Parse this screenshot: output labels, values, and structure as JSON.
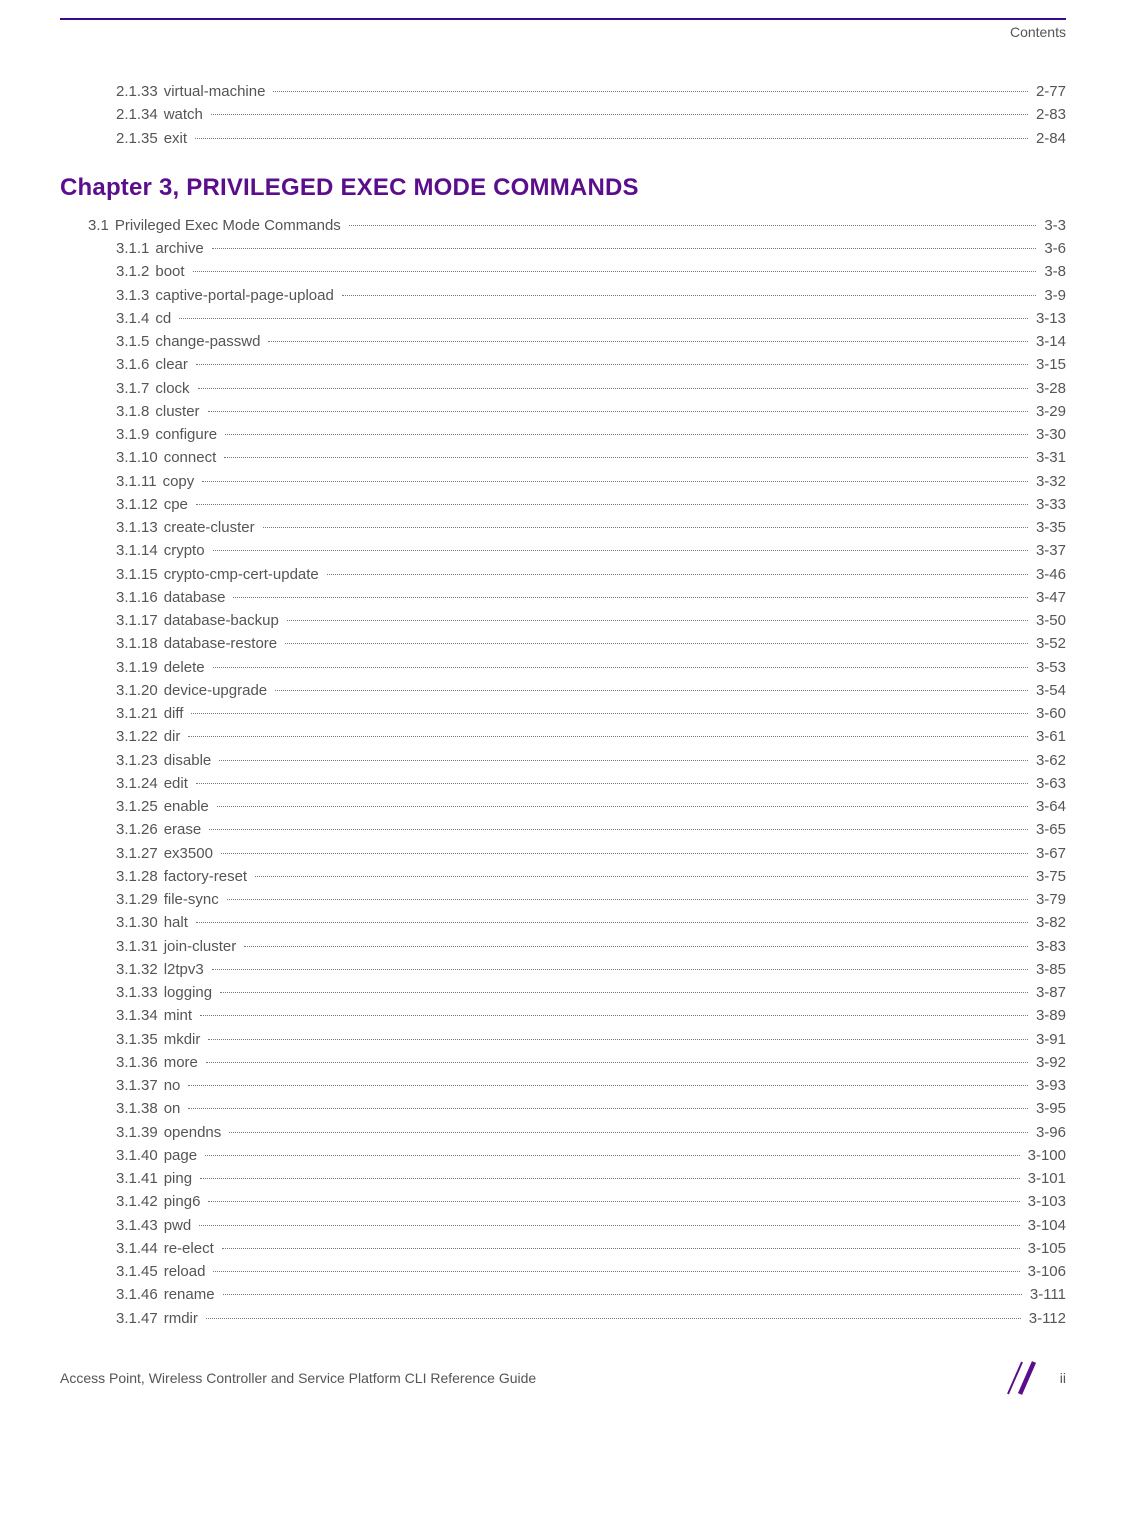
{
  "header": {
    "label": "Contents"
  },
  "colors": {
    "accent": "#5b0e8b",
    "rule": "#3a0a8a",
    "text": "#555555",
    "dots": "#777777",
    "slash": "#5b0e8b",
    "background": "#ffffff"
  },
  "typography": {
    "body_fontsize": 15,
    "chapter_fontsize": 24,
    "chapter_weight": 700
  },
  "pretoc": [
    {
      "num": "2.1.33",
      "title": "virtual-machine",
      "page": "2-77",
      "level": 2
    },
    {
      "num": "2.1.34",
      "title": "watch",
      "page": "2-83",
      "level": 2
    },
    {
      "num": "2.1.35",
      "title": "exit",
      "page": "2-84",
      "level": 2
    }
  ],
  "chapter": {
    "heading": "Chapter 3, PRIVILEGED EXEC MODE COMMANDS"
  },
  "toc": [
    {
      "num": "3.1",
      "title": "Privileged Exec Mode Commands",
      "page": "3-3",
      "level": 1
    },
    {
      "num": "3.1.1",
      "title": "archive",
      "page": "3-6",
      "level": 2
    },
    {
      "num": "3.1.2",
      "title": "boot",
      "page": "3-8",
      "level": 2
    },
    {
      "num": "3.1.3",
      "title": "captive-portal-page-upload",
      "page": "3-9",
      "level": 2
    },
    {
      "num": "3.1.4",
      "title": "cd",
      "page": "3-13",
      "level": 2
    },
    {
      "num": "3.1.5",
      "title": "change-passwd",
      "page": "3-14",
      "level": 2
    },
    {
      "num": "3.1.6",
      "title": "clear",
      "page": "3-15",
      "level": 2
    },
    {
      "num": "3.1.7",
      "title": "clock",
      "page": "3-28",
      "level": 2
    },
    {
      "num": "3.1.8",
      "title": "cluster",
      "page": "3-29",
      "level": 2
    },
    {
      "num": "3.1.9",
      "title": "configure",
      "page": "3-30",
      "level": 2
    },
    {
      "num": "3.1.10",
      "title": "connect",
      "page": "3-31",
      "level": 2
    },
    {
      "num": "3.1.11",
      "title": "copy",
      "page": "3-32",
      "level": 2
    },
    {
      "num": "3.1.12",
      "title": "cpe",
      "page": "3-33",
      "level": 2
    },
    {
      "num": "3.1.13",
      "title": "create-cluster",
      "page": "3-35",
      "level": 2
    },
    {
      "num": "3.1.14",
      "title": "crypto",
      "page": "3-37",
      "level": 2
    },
    {
      "num": "3.1.15",
      "title": "crypto-cmp-cert-update",
      "page": "3-46",
      "level": 2
    },
    {
      "num": "3.1.16",
      "title": "database",
      "page": "3-47",
      "level": 2
    },
    {
      "num": "3.1.17",
      "title": "database-backup",
      "page": "3-50",
      "level": 2
    },
    {
      "num": "3.1.18",
      "title": "database-restore",
      "page": "3-52",
      "level": 2
    },
    {
      "num": "3.1.19",
      "title": "delete",
      "page": "3-53",
      "level": 2
    },
    {
      "num": "3.1.20",
      "title": "device-upgrade",
      "page": "3-54",
      "level": 2
    },
    {
      "num": "3.1.21",
      "title": "diff",
      "page": "3-60",
      "level": 2
    },
    {
      "num": "3.1.22",
      "title": "dir",
      "page": "3-61",
      "level": 2
    },
    {
      "num": "3.1.23",
      "title": "disable",
      "page": "3-62",
      "level": 2
    },
    {
      "num": "3.1.24",
      "title": "edit",
      "page": "3-63",
      "level": 2
    },
    {
      "num": "3.1.25",
      "title": "enable",
      "page": "3-64",
      "level": 2
    },
    {
      "num": "3.1.26",
      "title": "erase",
      "page": "3-65",
      "level": 2
    },
    {
      "num": "3.1.27",
      "title": "ex3500",
      "page": "3-67",
      "level": 2
    },
    {
      "num": "3.1.28",
      "title": "factory-reset",
      "page": "3-75",
      "level": 2
    },
    {
      "num": "3.1.29",
      "title": "file-sync",
      "page": "3-79",
      "level": 2
    },
    {
      "num": "3.1.30",
      "title": "halt",
      "page": "3-82",
      "level": 2
    },
    {
      "num": "3.1.31",
      "title": "join-cluster",
      "page": "3-83",
      "level": 2
    },
    {
      "num": "3.1.32",
      "title": "l2tpv3",
      "page": "3-85",
      "level": 2
    },
    {
      "num": "3.1.33",
      "title": "logging",
      "page": "3-87",
      "level": 2
    },
    {
      "num": "3.1.34",
      "title": "mint",
      "page": "3-89",
      "level": 2
    },
    {
      "num": "3.1.35",
      "title": "mkdir",
      "page": "3-91",
      "level": 2
    },
    {
      "num": "3.1.36",
      "title": "more",
      "page": "3-92",
      "level": 2
    },
    {
      "num": "3.1.37",
      "title": "no",
      "page": "3-93",
      "level": 2
    },
    {
      "num": "3.1.38",
      "title": "on",
      "page": "3-95",
      "level": 2
    },
    {
      "num": "3.1.39",
      "title": "opendns",
      "page": "3-96",
      "level": 2
    },
    {
      "num": "3.1.40",
      "title": "page",
      "page": "3-100",
      "level": 2
    },
    {
      "num": "3.1.41",
      "title": "ping",
      "page": "3-101",
      "level": 2
    },
    {
      "num": "3.1.42",
      "title": "ping6",
      "page": "3-103",
      "level": 2
    },
    {
      "num": "3.1.43",
      "title": "pwd",
      "page": "3-104",
      "level": 2
    },
    {
      "num": "3.1.44",
      "title": "re-elect",
      "page": "3-105",
      "level": 2
    },
    {
      "num": "3.1.45",
      "title": "reload",
      "page": "3-106",
      "level": 2
    },
    {
      "num": "3.1.46",
      "title": "rename",
      "page": "3-111",
      "level": 2
    },
    {
      "num": "3.1.47",
      "title": "rmdir",
      "page": "3-112",
      "level": 2
    }
  ],
  "footer": {
    "title": "Access Point, Wireless Controller and Service Platform CLI Reference Guide",
    "page_number": "ii"
  }
}
